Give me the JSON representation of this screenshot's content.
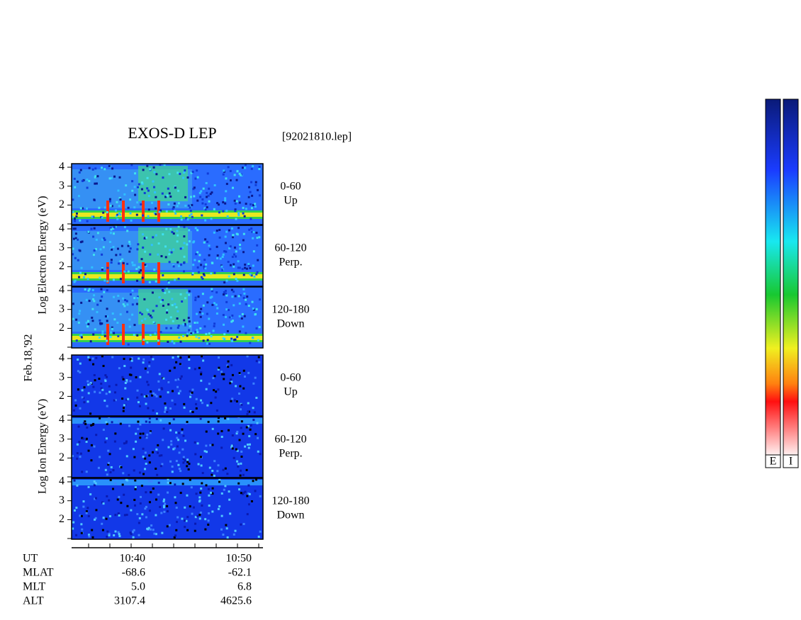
{
  "header": {
    "title": "EXOS-D LEP",
    "file": "[92021810.lep]"
  },
  "date": "Feb.18,'92",
  "groups": [
    {
      "label": "Log Electron Energy (eV)",
      "panels": [
        {
          "range": "0-60",
          "direction": "Up"
        },
        {
          "range": "60-120",
          "direction": "Perp."
        },
        {
          "range": "120-180",
          "direction": "Down"
        }
      ]
    },
    {
      "label": "Log Ion Energy (eV)",
      "panels": [
        {
          "range": "0-60",
          "direction": "Up"
        },
        {
          "range": "60-120",
          "direction": "Perp."
        },
        {
          "range": "120-180",
          "direction": "Down"
        }
      ]
    }
  ],
  "yticks": [
    2,
    3,
    4
  ],
  "footer": {
    "rows": [
      {
        "name": "UT",
        "values": [
          "10:40",
          "10:50"
        ]
      },
      {
        "name": "MLAT",
        "values": [
          "-68.6",
          "-62.1"
        ]
      },
      {
        "name": "MLT",
        "values": [
          "5.0",
          "6.8"
        ]
      },
      {
        "name": "ALT",
        "values": [
          "3107.4",
          "4625.6"
        ]
      }
    ]
  },
  "colorbars": [
    "E",
    "I"
  ]
}
